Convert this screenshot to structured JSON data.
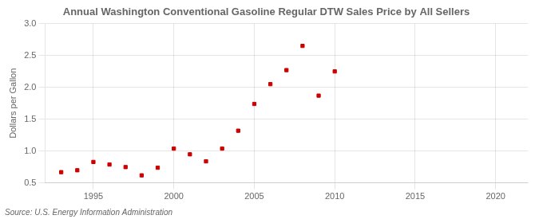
{
  "chart_data": {
    "type": "scatter",
    "title": "Annual Washington Conventional Gasoline Regular DTW Sales Price by All Sellers",
    "ylabel": "Dollars per Gallon",
    "annotations": [
      "Source: U.S. Energy Information Administration"
    ],
    "x": [
      1993,
      1994,
      1995,
      1996,
      1997,
      1998,
      1999,
      2000,
      2001,
      2002,
      2003,
      2004,
      2005,
      2006,
      2007,
      2008,
      2009,
      2010
    ],
    "values": [
      0.67,
      0.7,
      0.83,
      0.79,
      0.75,
      0.62,
      0.74,
      1.04,
      0.95,
      0.84,
      1.04,
      1.32,
      1.74,
      2.05,
      2.27,
      2.65,
      1.87,
      2.25
    ],
    "color": "#cc0000",
    "marker": "square",
    "xlim": [
      1992,
      2022
    ],
    "ylim": [
      0.5,
      3.0
    ],
    "xticks": [
      1995,
      2000,
      2005,
      2010,
      2015,
      2020
    ],
    "yticks": [
      0.5,
      {
        "value": 1.0,
        "label": "1.0"
      },
      1.5,
      {
        "value": 2.0,
        "label": "2.0"
      },
      2.5,
      {
        "value": 3.0,
        "label": "3.0"
      }
    ],
    "grid": true
  }
}
